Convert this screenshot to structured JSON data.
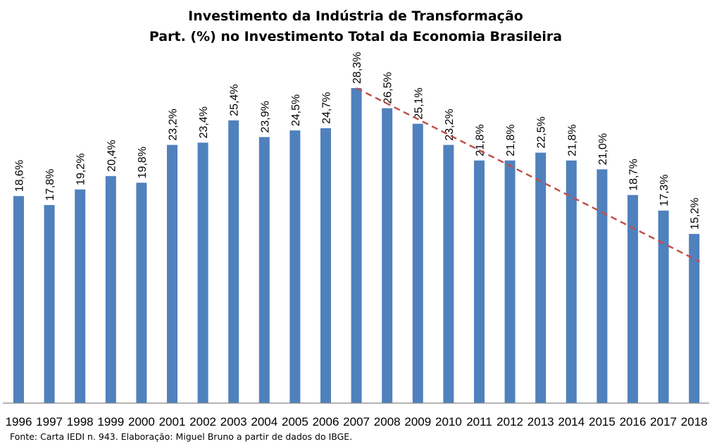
{
  "chart_data": {
    "type": "bar",
    "title": "Investimento da Indústria de Transformação",
    "subtitle": "Part. (%) no Investimento Total da Economia Brasileira",
    "categories": [
      "1996",
      "1997",
      "1998",
      "1999",
      "2000",
      "2001",
      "2002",
      "2003",
      "2004",
      "2005",
      "2006",
      "2007",
      "2008",
      "2009",
      "2010",
      "2011",
      "2012",
      "2013",
      "2014",
      "2015",
      "2016",
      "2017",
      "2018"
    ],
    "values": [
      18.6,
      17.8,
      19.2,
      20.4,
      19.8,
      23.2,
      23.4,
      25.4,
      23.9,
      24.5,
      24.7,
      28.3,
      26.5,
      25.1,
      23.2,
      21.8,
      21.8,
      22.5,
      21.8,
      21.0,
      18.7,
      17.3,
      15.2
    ],
    "data_labels": [
      "18,6%",
      "17,8%",
      "19,2%",
      "20,4%",
      "19,8%",
      "23,2%",
      "23,4%",
      "25,4%",
      "23,9%",
      "24,5%",
      "24,7%",
      "28,3%",
      "26,5%",
      "25,1%",
      "23,2%",
      "21,8%",
      "21,8%",
      "22,5%",
      "21,8%",
      "21,0%",
      "18,7%",
      "17,3%",
      "15,2%"
    ],
    "ylim": [
      0,
      30
    ],
    "grid": false,
    "bar_color": "#4f81bd",
    "trendline": {
      "style": "dashed",
      "color": "#c0504d",
      "from": {
        "x": "2007",
        "y": 28.3
      },
      "to": {
        "x": "2018",
        "y": 12.7
      }
    },
    "source": "Fonte: Carta IEDI n. 943. Elaboração: Miguel Bruno a partir de dados do IBGE."
  }
}
